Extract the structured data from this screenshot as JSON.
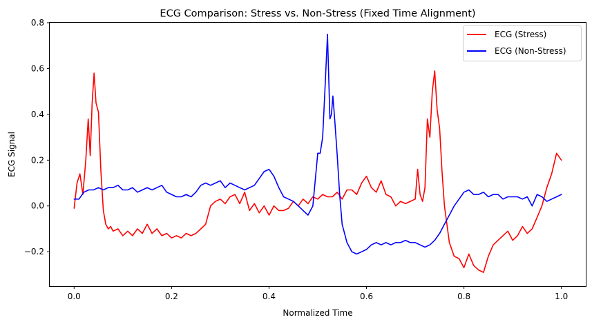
{
  "chart_data": {
    "type": "line",
    "title": "ECG Comparison: Stress vs. Non-Stress (Fixed Time Alignment)",
    "xlabel": "Normalized Time",
    "ylabel": "ECG Signal",
    "xlim": [
      -0.05,
      1.05
    ],
    "ylim": [
      -0.35,
      0.8
    ],
    "x_ticks": [
      0.0,
      0.2,
      0.4,
      0.6,
      0.8,
      1.0
    ],
    "x_tick_labels": [
      "0.0",
      "0.2",
      "0.4",
      "0.6",
      "0.8",
      "1.0"
    ],
    "y_ticks": [
      -0.2,
      0.0,
      0.2,
      0.4,
      0.6,
      0.8
    ],
    "y_tick_labels": [
      "−0.2",
      "0.0",
      "0.2",
      "0.4",
      "0.6",
      "0.8"
    ],
    "grid": false,
    "legend_position": "top-right",
    "series": [
      {
        "name": "ECG (Stress)",
        "color": "#ff0000",
        "x": [
          0.0,
          0.006,
          0.012,
          0.018,
          0.024,
          0.029,
          0.033,
          0.037,
          0.041,
          0.045,
          0.05,
          0.055,
          0.06,
          0.065,
          0.07,
          0.075,
          0.08,
          0.09,
          0.1,
          0.11,
          0.12,
          0.13,
          0.14,
          0.15,
          0.16,
          0.17,
          0.18,
          0.19,
          0.2,
          0.21,
          0.22,
          0.23,
          0.24,
          0.25,
          0.26,
          0.27,
          0.28,
          0.29,
          0.3,
          0.31,
          0.32,
          0.33,
          0.34,
          0.35,
          0.36,
          0.37,
          0.38,
          0.39,
          0.4,
          0.41,
          0.42,
          0.43,
          0.44,
          0.45,
          0.46,
          0.47,
          0.48,
          0.49,
          0.5,
          0.51,
          0.52,
          0.53,
          0.54,
          0.55,
          0.56,
          0.57,
          0.58,
          0.59,
          0.6,
          0.61,
          0.62,
          0.63,
          0.64,
          0.65,
          0.66,
          0.67,
          0.68,
          0.69,
          0.7,
          0.705,
          0.71,
          0.715,
          0.72,
          0.725,
          0.73,
          0.735,
          0.74,
          0.745,
          0.75,
          0.755,
          0.76,
          0.77,
          0.78,
          0.79,
          0.8,
          0.81,
          0.82,
          0.83,
          0.84,
          0.85,
          0.86,
          0.87,
          0.88,
          0.89,
          0.9,
          0.91,
          0.92,
          0.93,
          0.94,
          0.95,
          0.96,
          0.97,
          0.98,
          0.99,
          1.0
        ],
        "values": [
          -0.01,
          0.1,
          0.14,
          0.05,
          0.2,
          0.38,
          0.22,
          0.45,
          0.58,
          0.45,
          0.41,
          0.15,
          -0.02,
          -0.08,
          -0.1,
          -0.09,
          -0.11,
          -0.1,
          -0.13,
          -0.11,
          -0.13,
          -0.1,
          -0.12,
          -0.08,
          -0.12,
          -0.1,
          -0.13,
          -0.12,
          -0.14,
          -0.13,
          -0.14,
          -0.12,
          -0.13,
          -0.12,
          -0.1,
          -0.08,
          0.0,
          0.02,
          0.03,
          0.01,
          0.04,
          0.05,
          0.01,
          0.06,
          -0.02,
          0.01,
          -0.03,
          0.0,
          -0.04,
          0.0,
          -0.02,
          -0.02,
          -0.01,
          0.02,
          0.0,
          0.03,
          0.01,
          0.04,
          0.03,
          0.05,
          0.04,
          0.04,
          0.06,
          0.03,
          0.07,
          0.07,
          0.05,
          0.1,
          0.13,
          0.08,
          0.06,
          0.11,
          0.05,
          0.04,
          0.0,
          0.02,
          0.01,
          0.02,
          0.03,
          0.16,
          0.05,
          0.02,
          0.08,
          0.38,
          0.3,
          0.5,
          0.59,
          0.42,
          0.34,
          0.15,
          0.0,
          -0.16,
          -0.22,
          -0.23,
          -0.27,
          -0.21,
          -0.26,
          -0.28,
          -0.29,
          -0.22,
          -0.17,
          -0.15,
          -0.13,
          -0.11,
          -0.15,
          -0.13,
          -0.09,
          -0.12,
          -0.1,
          -0.05,
          0.0,
          0.08,
          0.14,
          0.23,
          0.2
        ]
      },
      {
        "name": "ECG (Non-Stress)",
        "color": "#0000ff",
        "x": [
          0.0,
          0.01,
          0.02,
          0.03,
          0.04,
          0.05,
          0.06,
          0.07,
          0.08,
          0.09,
          0.1,
          0.11,
          0.12,
          0.13,
          0.14,
          0.15,
          0.16,
          0.17,
          0.18,
          0.19,
          0.2,
          0.21,
          0.22,
          0.23,
          0.24,
          0.25,
          0.26,
          0.27,
          0.28,
          0.29,
          0.3,
          0.31,
          0.32,
          0.33,
          0.34,
          0.35,
          0.36,
          0.37,
          0.38,
          0.39,
          0.4,
          0.41,
          0.42,
          0.43,
          0.44,
          0.45,
          0.46,
          0.47,
          0.48,
          0.49,
          0.5,
          0.505,
          0.51,
          0.515,
          0.52,
          0.525,
          0.528,
          0.531,
          0.535,
          0.54,
          0.545,
          0.55,
          0.56,
          0.57,
          0.58,
          0.59,
          0.6,
          0.61,
          0.62,
          0.63,
          0.64,
          0.65,
          0.66,
          0.67,
          0.68,
          0.69,
          0.7,
          0.71,
          0.72,
          0.73,
          0.74,
          0.75,
          0.76,
          0.77,
          0.78,
          0.79,
          0.8,
          0.81,
          0.82,
          0.83,
          0.84,
          0.85,
          0.86,
          0.87,
          0.88,
          0.89,
          0.9,
          0.91,
          0.92,
          0.93,
          0.94,
          0.95,
          0.96,
          0.97,
          0.98,
          0.99,
          1.0
        ],
        "values": [
          0.03,
          0.03,
          0.06,
          0.07,
          0.07,
          0.08,
          0.07,
          0.08,
          0.08,
          0.09,
          0.07,
          0.07,
          0.08,
          0.06,
          0.07,
          0.08,
          0.07,
          0.08,
          0.09,
          0.06,
          0.05,
          0.04,
          0.04,
          0.05,
          0.04,
          0.06,
          0.09,
          0.1,
          0.09,
          0.1,
          0.11,
          0.08,
          0.1,
          0.09,
          0.08,
          0.07,
          0.08,
          0.09,
          0.12,
          0.15,
          0.16,
          0.13,
          0.08,
          0.04,
          0.03,
          0.02,
          0.0,
          -0.02,
          -0.04,
          0.0,
          0.23,
          0.23,
          0.3,
          0.52,
          0.75,
          0.38,
          0.4,
          0.48,
          0.37,
          0.22,
          0.05,
          -0.08,
          -0.16,
          -0.2,
          -0.21,
          -0.2,
          -0.19,
          -0.17,
          -0.16,
          -0.17,
          -0.16,
          -0.17,
          -0.16,
          -0.16,
          -0.15,
          -0.16,
          -0.16,
          -0.17,
          -0.18,
          -0.17,
          -0.15,
          -0.12,
          -0.08,
          -0.04,
          0.0,
          0.03,
          0.06,
          0.07,
          0.05,
          0.05,
          0.06,
          0.04,
          0.05,
          0.05,
          0.03,
          0.04,
          0.04,
          0.04,
          0.03,
          0.04,
          0.0,
          0.05,
          0.04,
          0.02,
          0.03,
          0.04,
          0.05
        ]
      }
    ]
  }
}
